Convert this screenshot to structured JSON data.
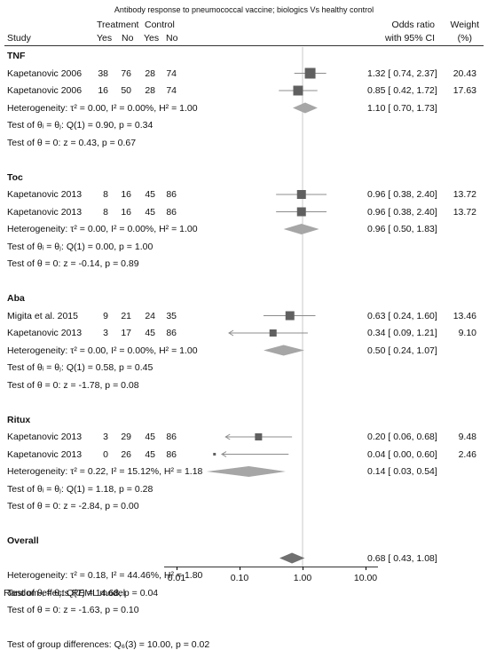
{
  "chart_data": {
    "type": "forest",
    "title": "Antibody response to pneumococcal vaccine; biologics Vs healthy control",
    "header": {
      "study": "Study",
      "treatment": "Treatment",
      "control": "Control",
      "yes": "Yes",
      "no": "No",
      "or_line1": "Odds ratio",
      "or_line2": "with 95% CI",
      "weight_line1": "Weight",
      "weight_line2": "(%)"
    },
    "x_scale": "log",
    "x_ticks": [
      0.01,
      0.1,
      1,
      10
    ],
    "x_tick_labels": [
      "0.01",
      "0.10",
      "1.00",
      "10.00"
    ],
    "reference_line": 1,
    "footnote": "Random-effects REML model",
    "rows": [
      {
        "kind": "group",
        "label": "TNF"
      },
      {
        "kind": "study",
        "study": "Kapetanovic 2006",
        "t_yes": "38",
        "t_no": "76",
        "c_yes": "28",
        "c_no": "74",
        "or": 1.32,
        "lo": 0.74,
        "hi": 2.37,
        "ci_text": "1.32 [ 0.74, 2.37]",
        "weight": "20.43",
        "box": 12
      },
      {
        "kind": "study",
        "study": "Kapetanovic 2006",
        "t_yes": "16",
        "t_no": "50",
        "c_yes": "28",
        "c_no": "74",
        "or": 0.85,
        "lo": 0.42,
        "hi": 1.72,
        "ci_text": "0.85 [ 0.42, 1.72]",
        "weight": "17.63",
        "box": 11
      },
      {
        "kind": "summary",
        "label": "Heterogeneity: τ² = 0.00, I² = 0.00%, H² = 1.00",
        "or": 1.1,
        "lo": 0.7,
        "hi": 1.73,
        "ci_text": "1.10 [ 0.70, 1.73]"
      },
      {
        "kind": "text",
        "label": "Test of θᵢ = θⱼ: Q(1) = 0.90, p = 0.34"
      },
      {
        "kind": "text",
        "label": "Test of θ = 0: z = 0.43, p = 0.67"
      },
      {
        "kind": "blank"
      },
      {
        "kind": "group",
        "label": "Toc"
      },
      {
        "kind": "study",
        "study": "Kapetanovic 2013",
        "t_yes": "8",
        "t_no": "16",
        "c_yes": "45",
        "c_no": "86",
        "or": 0.96,
        "lo": 0.38,
        "hi": 2.4,
        "ci_text": "0.96 [ 0.38, 2.40]",
        "weight": "13.72",
        "box": 10
      },
      {
        "kind": "study",
        "study": "Kapetanovic 2013",
        "t_yes": "8",
        "t_no": "16",
        "c_yes": "45",
        "c_no": "86",
        "or": 0.96,
        "lo": 0.38,
        "hi": 2.4,
        "ci_text": "0.96 [ 0.38, 2.40]",
        "weight": "13.72",
        "box": 10
      },
      {
        "kind": "summary",
        "label": "Heterogeneity: τ² = 0.00, I² = 0.00%, H² = 1.00",
        "or": 0.96,
        "lo": 0.5,
        "hi": 1.83,
        "ci_text": "0.96 [ 0.50, 1.83]"
      },
      {
        "kind": "text",
        "label": "Test of θᵢ = θⱼ: Q(1) = 0.00, p = 1.00"
      },
      {
        "kind": "text",
        "label": "Test of θ = 0: z = -0.14, p = 0.89"
      },
      {
        "kind": "blank"
      },
      {
        "kind": "group",
        "label": "Aba"
      },
      {
        "kind": "study",
        "study": "Migita et al. 2015",
        "t_yes": "9",
        "t_no": "21",
        "c_yes": "24",
        "c_no": "35",
        "or": 0.63,
        "lo": 0.24,
        "hi": 1.6,
        "ci_text": "0.63 [ 0.24, 1.60]",
        "weight": "13.46",
        "box": 10
      },
      {
        "kind": "study",
        "study": "Kapetanovic 2013",
        "t_yes": "3",
        "t_no": "17",
        "c_yes": "45",
        "c_no": "86",
        "or": 0.34,
        "lo": 0.09,
        "hi": 1.21,
        "ci_text": "0.34 [ 0.09, 1.21]",
        "weight": "9.10",
        "box": 8,
        "arrow_left": true
      },
      {
        "kind": "summary",
        "label": "Heterogeneity: τ² = 0.00, I² = 0.00%, H² = 1.00",
        "or": 0.5,
        "lo": 0.24,
        "hi": 1.07,
        "ci_text": "0.50 [ 0.24, 1.07]"
      },
      {
        "kind": "text",
        "label": "Test of θᵢ = θⱼ: Q(1) = 0.58, p = 0.45"
      },
      {
        "kind": "text",
        "label": "Test of θ = 0: z = -1.78, p = 0.08"
      },
      {
        "kind": "blank"
      },
      {
        "kind": "group",
        "label": "Ritux"
      },
      {
        "kind": "study",
        "study": "Kapetanovic 2013",
        "t_yes": "3",
        "t_no": "29",
        "c_yes": "45",
        "c_no": "86",
        "or": 0.2,
        "lo": 0.06,
        "hi": 0.68,
        "ci_text": "0.20 [ 0.06, 0.68]",
        "weight": "9.48",
        "box": 8,
        "arrow_left": true
      },
      {
        "kind": "study",
        "study": "Kapetanovic 2013",
        "t_yes": "0",
        "t_no": "26",
        "c_yes": "45",
        "c_no": "86",
        "or": 0.04,
        "lo": 0.0,
        "hi": 0.6,
        "ci_text": "0.04 [ 0.00, 0.60]",
        "weight": "2.46",
        "box": 3,
        "arrow_left": true
      },
      {
        "kind": "summary",
        "label": "Heterogeneity: τ² = 0.22, I² = 15.12%, H² = 1.18",
        "or": 0.14,
        "lo": 0.03,
        "hi": 0.54,
        "ci_text": "0.14 [ 0.03, 0.54]"
      },
      {
        "kind": "text",
        "label": "Test of θᵢ = θⱼ: Q(1) = 1.18, p = 0.28"
      },
      {
        "kind": "text",
        "label": "Test of θ = 0: z = -2.84, p = 0.00"
      },
      {
        "kind": "blank"
      },
      {
        "kind": "group",
        "label": "Overall"
      },
      {
        "kind": "overall",
        "or": 0.68,
        "lo": 0.43,
        "hi": 1.08,
        "ci_text": "0.68 [ 0.43, 1.08]"
      },
      {
        "kind": "text",
        "label": "Heterogeneity: τ² = 0.18, I² = 44.46%, H² = 1.80"
      },
      {
        "kind": "text",
        "label": "Test of θᵢ = θⱼ: Q(7) = 14.68, p = 0.04"
      },
      {
        "kind": "text",
        "label": "Test of θ = 0: z = -1.63, p = 0.10"
      },
      {
        "kind": "blank"
      },
      {
        "kind": "text",
        "label": "Test of group differences: Q₆(3) = 10.00, p = 0.02"
      }
    ],
    "colors": {
      "box": "#606060",
      "diamond_subgroup": "#a6a6a6",
      "diamond_overall": "#707070",
      "ci_line": "#8c8c8c",
      "axis": "#000000",
      "reference": "#c8c8c8"
    }
  }
}
